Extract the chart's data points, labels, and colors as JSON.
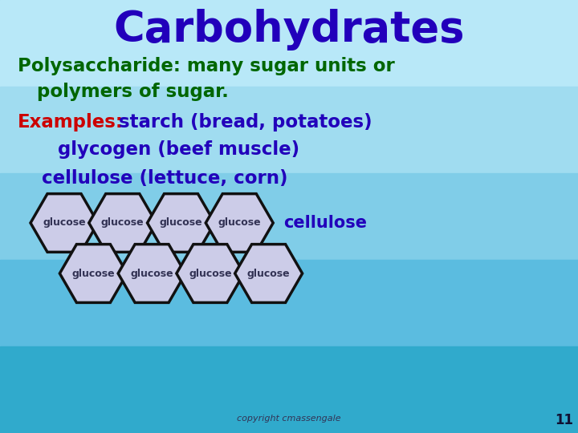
{
  "title": "Carbohydrates",
  "title_color": "#2200BB",
  "title_fontsize": 38,
  "line1": "Polysaccharide: many sugar units or",
  "line2": "   polymers of sugar.",
  "poly_color": "#006600",
  "line3_red": "Examples:",
  "line3_rest": "   starch (bread, potatoes)",
  "line3_rest_color": "#2200BB",
  "line4": "   glycogen (beef muscle)",
  "line4_color": "#2200BB",
  "line5": "   cellulose (lettuce, corn)",
  "line5_color": "#2200BB",
  "hex_fill": "#CCCCE8",
  "hex_edge": "#111111",
  "hex_label": "glucose",
  "hex_label_color": "#333355",
  "cellulose_label": "cellulose",
  "cellulose_color": "#2200BB",
  "copyright_text": "copyright cmassengale",
  "slide_number": "11",
  "bg_colors": [
    "#B8E8F8",
    "#A0DCF0",
    "#80CDE8",
    "#5BBCE0",
    "#30AACC"
  ],
  "red_color": "#CC0000"
}
